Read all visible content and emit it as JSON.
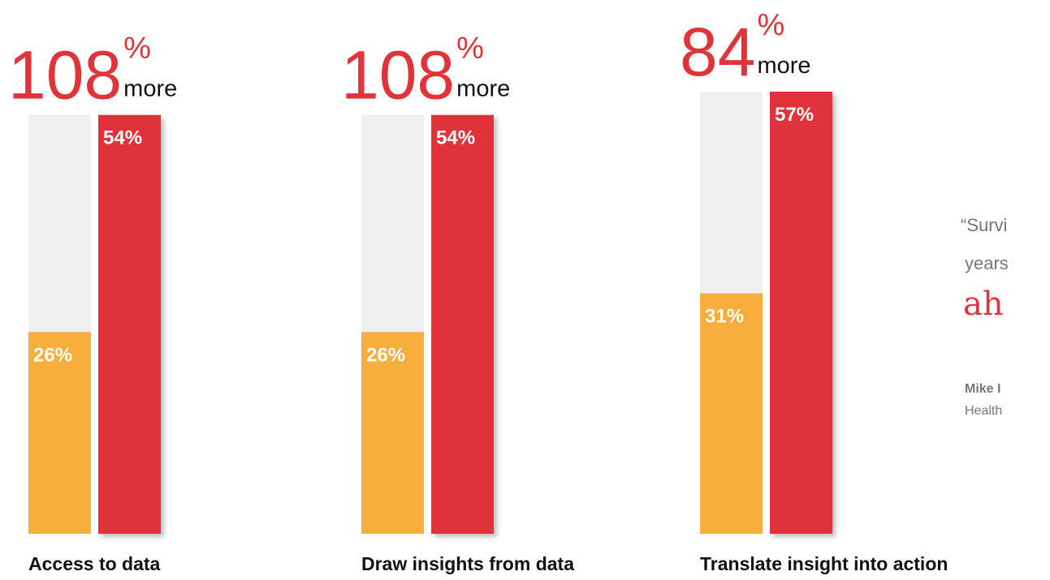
{
  "chart_data": [
    {
      "type": "bar",
      "increase": 108,
      "increase_unit": "%",
      "increase_note": "more",
      "label": "Access to data",
      "values": [
        26,
        54
      ],
      "value_labels": [
        "26%",
        "54%"
      ],
      "colors": [
        "#f8ae3c",
        "#e0333a"
      ],
      "ylim": [
        0,
        57
      ]
    },
    {
      "type": "bar",
      "increase": 108,
      "increase_unit": "%",
      "increase_note": "more",
      "label": "Draw insights from data",
      "values": [
        26,
        54
      ],
      "value_labels": [
        "26%",
        "54%"
      ],
      "colors": [
        "#f8ae3c",
        "#e0333a"
      ],
      "ylim": [
        0,
        57
      ]
    },
    {
      "type": "bar",
      "increase": 84,
      "increase_unit": "%",
      "increase_note": "more",
      "label": "Translate insight into action",
      "values": [
        31,
        57
      ],
      "value_labels": [
        "31%",
        "57%"
      ],
      "colors": [
        "#f8ae3c",
        "#e0333a"
      ],
      "ylim": [
        0,
        57
      ]
    }
  ],
  "quote": {
    "line1": "“Survi",
    "line2": "years",
    "logo": "ah",
    "name": "Mike I",
    "role": "Health"
  }
}
